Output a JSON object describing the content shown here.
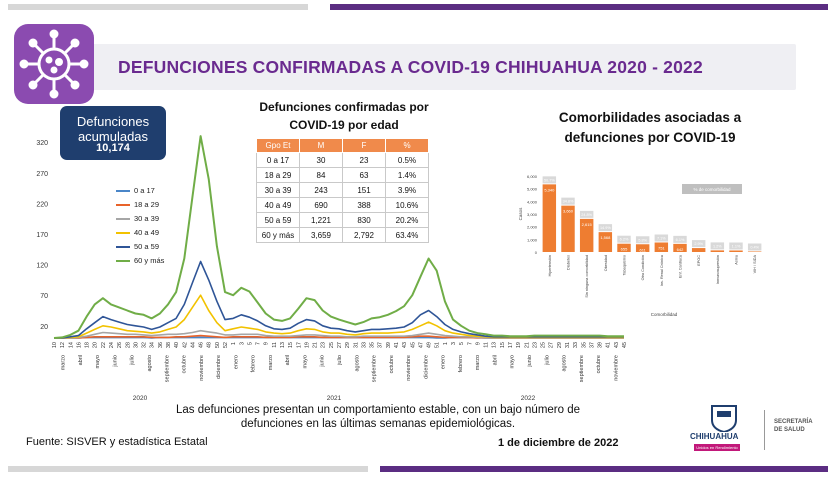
{
  "title": "DEFUNCIONES CONFIRMADAS A COVID-19 CHIHUAHUA 2020 - 2022",
  "accumulated": {
    "label": "Defunciones acumuladas",
    "value": "10,174"
  },
  "age_table": {
    "title": "Defunciones confirmadas por COVID-19 por edad",
    "headers": [
      "Gpo Et",
      "M",
      "F",
      "%"
    ],
    "rows": [
      [
        "0 a 17",
        "30",
        "23",
        "0.5%"
      ],
      [
        "18 a 29",
        "84",
        "63",
        "1.4%"
      ],
      [
        "30 a 39",
        "243",
        "151",
        "3.9%"
      ],
      [
        "40 a 49",
        "690",
        "388",
        "10.6%"
      ],
      [
        "50 a 59",
        "1,221",
        "830",
        "20.2%"
      ],
      [
        "60 y más",
        "3,659",
        "2,792",
        "63.4%"
      ]
    ]
  },
  "comorbidities_title": "Comorbilidades asociadas a defunciones por COVID-19",
  "note": "Las defunciones presentan un comportamiento estable, con un bajo número de defunciones en las últimas semanas epidemiológicas.",
  "source": "Fuente: SISVER y estadística Estatal",
  "date": "1 de diciembre de 2022",
  "logo": {
    "name": "CHIHUAHUA",
    "tag": "Unidos en Rendimiento",
    "secretaria": "SECRETARÍA DE SALUD"
  },
  "colors": {
    "purple": "#5b2d82",
    "title": "#6a2a8f",
    "navy": "#1f3e6e",
    "orange": "#f08a4b"
  },
  "chart_data": [
    {
      "type": "line",
      "title": "",
      "ylim": [
        0,
        340
      ],
      "y_ticks": [
        20,
        70,
        120,
        170,
        220,
        270,
        320
      ],
      "years": [
        "2020",
        "2021",
        "2022"
      ],
      "x_month_labels": [
        "marzo",
        "abril",
        "mayo",
        "junio",
        "julio",
        "agosto",
        "septiembre",
        "octubre",
        "noviembre",
        "diciembre",
        "enero",
        "febrero",
        "marzo",
        "abril",
        "mayo",
        "junio",
        "julio",
        "agosto",
        "septiembre",
        "octubre",
        "noviembre",
        "diciembre",
        "enero",
        "febrero",
        "marzo",
        "abril",
        "mayo",
        "junio",
        "julio",
        "agosto",
        "septiembre",
        "octubre",
        "noviembre"
      ],
      "x_week_labels": [
        "10",
        "12",
        "14",
        "16",
        "18",
        "20",
        "22",
        "24",
        "26",
        "28",
        "30",
        "32",
        "34",
        "36",
        "38",
        "40",
        "42",
        "44",
        "46",
        "48",
        "50",
        "52",
        "1",
        "3",
        "5",
        "7",
        "9",
        "11",
        "13",
        "15",
        "17",
        "19",
        "21",
        "23",
        "25",
        "27",
        "29",
        "31",
        "33",
        "35",
        "37",
        "39",
        "41",
        "43",
        "45",
        "47",
        "49",
        "51",
        "1",
        "3",
        "5",
        "7",
        "9",
        "11",
        "13",
        "15",
        "17",
        "19",
        "21",
        "23",
        "25",
        "27",
        "29",
        "31",
        "33",
        "35",
        "37",
        "39",
        "41",
        "43",
        "45"
      ],
      "series": [
        {
          "name": "0 a 17",
          "color": "#4a86c8",
          "values": [
            0,
            0,
            0,
            0,
            1,
            1,
            1,
            1,
            1,
            1,
            1,
            1,
            0,
            1,
            1,
            1,
            1,
            1,
            1,
            1,
            1,
            1,
            1,
            1,
            1,
            1,
            1,
            1,
            1,
            1,
            1,
            1,
            1,
            1,
            1,
            1,
            1,
            1,
            1,
            1,
            1,
            1,
            1,
            1,
            1,
            1,
            1,
            0,
            0,
            1,
            1,
            1,
            1,
            0,
            0,
            0,
            0,
            0,
            0,
            0,
            0,
            0,
            0,
            0,
            0,
            0,
            0,
            0,
            0,
            0,
            0
          ]
        },
        {
          "name": "18 a 29",
          "color": "#e8632a",
          "values": [
            0,
            0,
            0,
            0,
            1,
            2,
            2,
            2,
            2,
            2,
            2,
            2,
            1,
            1,
            1,
            2,
            2,
            3,
            4,
            3,
            2,
            1,
            2,
            2,
            2,
            2,
            1,
            1,
            1,
            1,
            2,
            2,
            2,
            1,
            1,
            1,
            1,
            1,
            1,
            1,
            1,
            1,
            1,
            1,
            2,
            3,
            3,
            2,
            1,
            1,
            1,
            1,
            0,
            0,
            0,
            0,
            0,
            0,
            0,
            0,
            0,
            0,
            0,
            0,
            0,
            0,
            0,
            0,
            0,
            0,
            0
          ]
        },
        {
          "name": "30 a 39",
          "color": "#a6a6a6",
          "values": [
            0,
            0,
            0,
            1,
            3,
            6,
            9,
            8,
            7,
            6,
            6,
            5,
            4,
            5,
            6,
            6,
            7,
            9,
            12,
            10,
            8,
            5,
            5,
            6,
            6,
            6,
            4,
            3,
            3,
            3,
            4,
            5,
            5,
            4,
            3,
            3,
            2,
            2,
            3,
            3,
            3,
            3,
            3,
            3,
            4,
            6,
            8,
            6,
            4,
            3,
            2,
            2,
            1,
            0,
            0,
            0,
            0,
            0,
            0,
            0,
            0,
            0,
            0,
            0,
            0,
            0,
            0,
            0,
            0,
            0,
            0
          ]
        },
        {
          "name": "40 a 49",
          "color": "#f2c200",
          "values": [
            0,
            0,
            1,
            2,
            8,
            14,
            20,
            18,
            15,
            12,
            11,
            10,
            8,
            10,
            14,
            18,
            30,
            50,
            70,
            45,
            25,
            12,
            15,
            18,
            16,
            14,
            10,
            8,
            7,
            8,
            12,
            15,
            14,
            10,
            8,
            8,
            6,
            5,
            7,
            8,
            8,
            8,
            9,
            10,
            14,
            20,
            26,
            20,
            12,
            8,
            6,
            4,
            3,
            2,
            1,
            1,
            1,
            1,
            1,
            1,
            1,
            1,
            1,
            1,
            1,
            1,
            1,
            1,
            1,
            1,
            1
          ]
        },
        {
          "name": "50 a 59",
          "color": "#2f5597",
          "values": [
            0,
            0,
            2,
            4,
            15,
            25,
            35,
            30,
            26,
            22,
            20,
            18,
            14,
            18,
            25,
            32,
            55,
            90,
            125,
            95,
            60,
            30,
            32,
            38,
            34,
            28,
            20,
            15,
            14,
            16,
            24,
            30,
            28,
            20,
            16,
            15,
            12,
            10,
            12,
            14,
            14,
            15,
            16,
            18,
            25,
            38,
            45,
            35,
            22,
            14,
            10,
            7,
            5,
            3,
            2,
            2,
            2,
            2,
            2,
            2,
            2,
            2,
            2,
            2,
            2,
            2,
            2,
            2,
            2,
            2,
            2
          ]
        },
        {
          "name": "60 y más",
          "color": "#70ad47",
          "values": [
            0,
            1,
            5,
            12,
            35,
            55,
            65,
            55,
            50,
            45,
            40,
            38,
            32,
            40,
            55,
            75,
            130,
            230,
            330,
            260,
            150,
            75,
            70,
            82,
            76,
            58,
            40,
            30,
            28,
            32,
            48,
            65,
            62,
            45,
            35,
            30,
            26,
            22,
            26,
            32,
            34,
            38,
            44,
            52,
            70,
            100,
            130,
            110,
            60,
            30,
            20,
            12,
            8,
            6,
            4,
            4,
            3,
            3,
            3,
            4,
            4,
            4,
            4,
            4,
            4,
            4,
            4,
            4,
            3,
            3,
            3
          ]
        }
      ]
    },
    {
      "type": "bar",
      "title": "",
      "ylabel": "Casos",
      "ylim": [
        0,
        6000
      ],
      "y_ticks": [
        "6,000",
        "5,000",
        "4,000",
        "3,000",
        "2,000",
        "1,000",
        "0"
      ],
      "legend_label": "% de comorbilidad",
      "xlabel": "Comorbilidad",
      "categories": [
        "Hipertensión",
        "Diabetes",
        "Sin ninguna comorbilidad",
        "Obesidad",
        "Tabaquismo",
        "Otra Condición",
        "Ins. Renal Crónica",
        "Enf. Cardiaca",
        "EPOC",
        "Inmunosupresión",
        "Asma",
        "VIH / SIDA"
      ],
      "values": [
        5340,
        3660,
        2615,
        1568,
        655,
        611,
        751,
        642,
        310,
        128,
        120,
        40
      ],
      "value_labels": [
        "5,340",
        "3,660",
        "2,615",
        "1,568",
        "655",
        "611",
        "751",
        "642",
        "",
        "",
        "",
        ""
      ],
      "percent_labels": [
        "50.7%",
        "34.8%",
        "24.8%",
        "14.9%",
        "6.2%",
        "5.8%",
        "7.1%",
        "6.1%",
        "2.9%",
        "1.2%",
        "1.1%",
        "0.4%"
      ]
    }
  ]
}
